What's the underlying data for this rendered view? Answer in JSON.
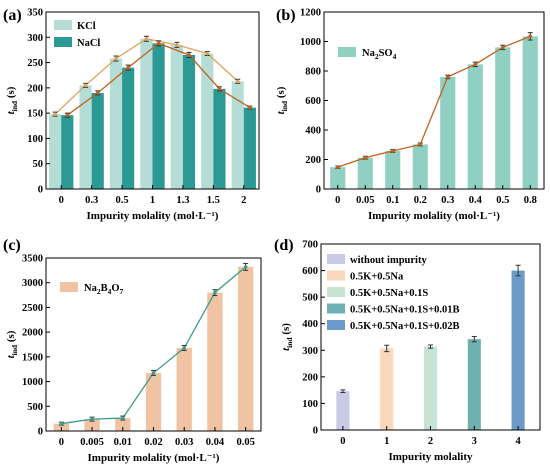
{
  "colors": {
    "kcl": "#b5ddd6",
    "nacl": "#2c9a94",
    "line_orange": "#e0a35b",
    "line_brown": "#c2621f",
    "na2so4": "#8fd0c2",
    "na2b4o7": "#f0c4a2",
    "line_teal": "#3e9d8c",
    "d_colors": [
      "#c9cbe6",
      "#fbd8bb",
      "#c6e3d5",
      "#6fb1b1",
      "#6c9bc9"
    ]
  },
  "chart_data": [
    {
      "panel": "(a)",
      "type": "bar",
      "categories": [
        "0",
        "0.3",
        "0.5",
        "1",
        "1.3",
        "1.5",
        "2"
      ],
      "series": [
        {
          "name": "KCl",
          "values": [
            148,
            205,
            258,
            297,
            285,
            268,
            213
          ],
          "errors": [
            4,
            4,
            5,
            5,
            5,
            4,
            4
          ]
        },
        {
          "name": "NaCl",
          "values": [
            146,
            190,
            240,
            288,
            265,
            198,
            161
          ],
          "errors": [
            4,
            4,
            5,
            5,
            5,
            4,
            3
          ]
        }
      ],
      "xlabel": "Impurity molality (mol·L⁻¹)",
      "ylabel": "t",
      "ylabel_sub": "ind",
      "ylabel_unit": " (s)",
      "ylim": [
        0,
        350
      ],
      "yticks": [
        0,
        50,
        100,
        150,
        200,
        250,
        300,
        350
      ],
      "legend": "top-left"
    },
    {
      "panel": "(b)",
      "type": "bar",
      "categories": [
        "0",
        "0.05",
        "0.1",
        "0.2",
        "0.3",
        "0.4",
        "0.5",
        "0.8"
      ],
      "series": [
        {
          "name": "Na2SO4",
          "values": [
            148,
            212,
            258,
            302,
            760,
            845,
            960,
            1035
          ],
          "errors": [
            8,
            10,
            10,
            10,
            12,
            15,
            15,
            25
          ]
        }
      ],
      "xlabel": "Impurity molality (mol·L⁻¹)",
      "ylabel": "t",
      "ylabel_sub": "ind",
      "ylabel_unit": " (s)",
      "ylim": [
        0,
        1200
      ],
      "yticks": [
        0,
        200,
        400,
        600,
        800,
        1000,
        1200
      ],
      "legend": "top-left"
    },
    {
      "panel": "(c)",
      "type": "bar",
      "categories": [
        "0",
        "0.005",
        "0.01",
        "0.02",
        "0.03",
        "0.04",
        "0.05"
      ],
      "series": [
        {
          "name": "Na2B4O7",
          "values": [
            148,
            240,
            262,
            1175,
            1680,
            2800,
            3320
          ],
          "errors": [
            30,
            40,
            40,
            50,
            50,
            60,
            70
          ]
        }
      ],
      "xlabel": "Impurity molality (mol·L⁻¹)",
      "ylabel": "t",
      "ylabel_sub": "ind",
      "ylabel_unit": " (s)",
      "ylim": [
        0,
        3500
      ],
      "yticks": [
        0,
        500,
        1000,
        1500,
        2000,
        2500,
        3000,
        3500
      ],
      "legend": "top-left"
    },
    {
      "panel": "(d)",
      "type": "bar",
      "categories": [
        "0",
        "1",
        "2",
        "3",
        "4"
      ],
      "values": [
        146,
        307,
        314,
        342,
        600
      ],
      "errors": [
        5,
        12,
        6,
        10,
        20
      ],
      "legend_entries": [
        "without impurity",
        "0.5K+0.5Na",
        "0.5K+0.5Na+0.1S",
        "0.5K+0.5Na+0.1S+0.01B",
        "0.5K+0.5Na+0.1S+0.02B"
      ],
      "xlabel": "Impurity molality",
      "ylabel": "t",
      "ylabel_sub": "ind",
      "ylabel_unit": " (s)",
      "ylim": [
        0,
        700
      ],
      "yticks": [
        0,
        100,
        200,
        300,
        400,
        500,
        600,
        700
      ],
      "legend": "top-left"
    }
  ]
}
